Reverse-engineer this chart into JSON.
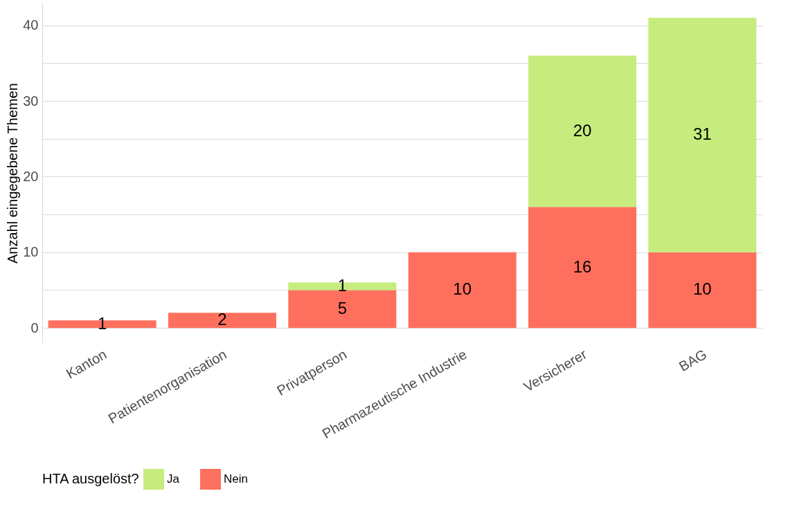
{
  "chart_data": {
    "type": "bar",
    "ylabel": "Anzahl eingegebene Themen",
    "legend_title": "HTA ausgelöst?",
    "categories": [
      "Kanton",
      "Patientenorganisation",
      "Privatperson",
      "Pharmazeutische Industrie",
      "Versicherer",
      "BAG"
    ],
    "stacked": true,
    "ylim": [
      -2,
      43
    ],
    "series": [
      {
        "name": "Nein",
        "color": "#ff6f5e",
        "values": [
          1,
          2,
          5,
          10,
          16,
          10
        ]
      },
      {
        "name": "Ja",
        "color": "#c5ec7d",
        "values": [
          null,
          null,
          1,
          null,
          20,
          31
        ]
      }
    ],
    "yticks": [
      0,
      {
        "value": 5,
        "label": null
      },
      10,
      {
        "value": 15,
        "label": null
      },
      20,
      {
        "value": 25,
        "label": null
      },
      30,
      {
        "value": 35,
        "label": null
      },
      40
    ],
    "grid": "y",
    "legend": "bottom",
    "data_labels": true
  }
}
